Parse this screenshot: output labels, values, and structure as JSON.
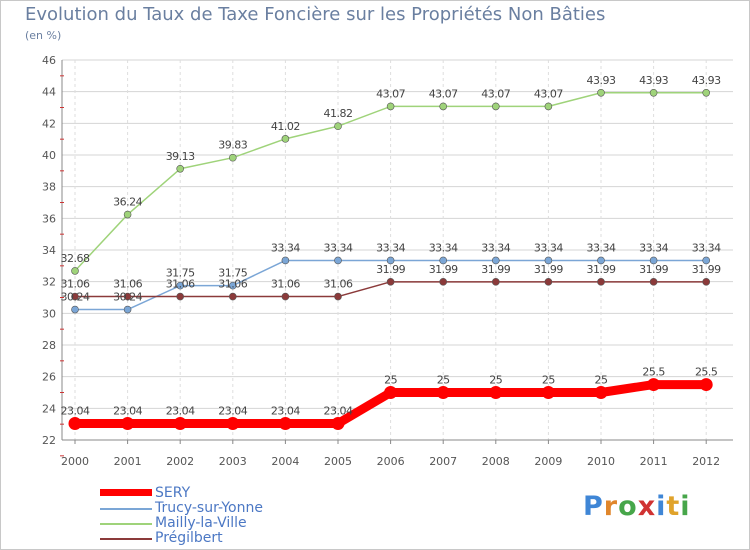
{
  "header": {
    "title": "Evolution du Taux de Taxe Foncière sur les Propriétés Non Bâties",
    "subtitle": "(en %)"
  },
  "logo": {
    "text": "Proxiti",
    "letters": [
      "P",
      "r",
      "o",
      "x",
      "i",
      "t",
      "i"
    ]
  },
  "chart_data": {
    "type": "line",
    "title": "Evolution du Taux de Taxe Foncière sur les Propriétés Non Bâties",
    "ylabel": "(en %)",
    "xlabel": "",
    "x": [
      "2000",
      "2001",
      "2002",
      "2003",
      "2004",
      "2005",
      "2006",
      "2007",
      "2008",
      "2009",
      "2010",
      "2011",
      "2012"
    ],
    "ylim": [
      22,
      46
    ],
    "yticks": [
      "22",
      "24",
      "26",
      "28",
      "30",
      "32",
      "34",
      "36",
      "38",
      "40",
      "42",
      "44",
      "46"
    ],
    "grid": true,
    "legend_position": "bottom-left",
    "series": [
      {
        "name": "SERY",
        "color": "#ff0000",
        "values": [
          23.04,
          23.04,
          23.04,
          23.04,
          23.04,
          23.04,
          25,
          25,
          25,
          25,
          25,
          25.5,
          25.5
        ],
        "labels": [
          "23.04",
          "23.04",
          "23.04",
          "23.04",
          "23.04",
          "23.04",
          "25",
          "25",
          "25",
          "25",
          "25",
          "25.5",
          "25.5"
        ]
      },
      {
        "name": "Trucy-sur-Yonne",
        "color": "#7ba6d6",
        "values": [
          30.24,
          30.24,
          31.75,
          31.75,
          33.34,
          33.34,
          33.34,
          33.34,
          33.34,
          33.34,
          33.34,
          33.34,
          33.34
        ],
        "labels": [
          "30.24",
          "30.24",
          "31.75",
          "31.75",
          "33.34",
          "33.34",
          "33.34",
          "33.34",
          "33.34",
          "33.34",
          "33.34",
          "33.34",
          "33.34"
        ]
      },
      {
        "name": "Mailly-la-Ville",
        "color": "#9fd37a",
        "values": [
          32.68,
          36.24,
          39.13,
          39.83,
          41.02,
          41.82,
          43.07,
          43.07,
          43.07,
          43.07,
          43.93,
          43.93,
          43.93
        ],
        "labels": [
          "32.68",
          "36.24",
          "39.13",
          "39.83",
          "41.02",
          "41.82",
          "43.07",
          "43.07",
          "43.07",
          "43.07",
          "43.93",
          "43.93",
          "43.93"
        ]
      },
      {
        "name": "Prégilbert",
        "color": "#8b3a3a",
        "values": [
          31.06,
          31.06,
          31.06,
          31.06,
          31.06,
          31.06,
          31.99,
          31.99,
          31.99,
          31.99,
          31.99,
          31.99,
          31.99
        ],
        "labels": [
          "31.06",
          "31.06",
          "31.06",
          "31.06",
          "31.06",
          "31.06",
          "31.99",
          "31.99",
          "31.99",
          "31.99",
          "31.99",
          "31.99",
          "31.99"
        ]
      }
    ]
  }
}
